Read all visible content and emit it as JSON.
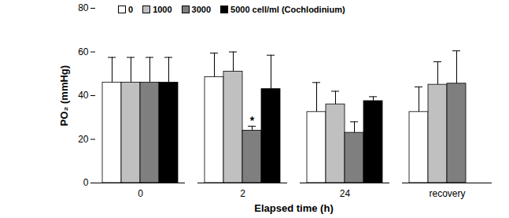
{
  "chart_data": {
    "type": "bar",
    "x_label": "Elapsed time (h)",
    "y_label": "PO₂ (mmHg)",
    "categories": [
      "0",
      "2",
      "24",
      "recovery"
    ],
    "series": [
      {
        "name": "0",
        "color": "#ffffff",
        "values": [
          46,
          48.5,
          32.5,
          32.5
        ],
        "errors": [
          11.5,
          11,
          13.5,
          11.5
        ]
      },
      {
        "name": "1000",
        "color": "#c0c0c0",
        "values": [
          46,
          51,
          36,
          45
        ],
        "errors": [
          11.5,
          9,
          6,
          10.5
        ]
      },
      {
        "name": "3000",
        "color": "#7f7f7f",
        "values": [
          46,
          24,
          23,
          45.5
        ],
        "errors": [
          11.5,
          2,
          5,
          15
        ]
      },
      {
        "name": "5000 cell/ml (Cochlodinium)",
        "color": "#000000",
        "values": [
          46,
          43,
          37.5,
          null
        ],
        "errors": [
          11.5,
          15.5,
          2,
          null
        ]
      }
    ],
    "annotations": [
      {
        "category": "2",
        "series": "3000",
        "text": "*"
      }
    ],
    "ylim": [
      0,
      80
    ],
    "yticks": [
      0,
      20,
      40,
      60,
      80
    ],
    "grid": false,
    "legend": "top"
  }
}
